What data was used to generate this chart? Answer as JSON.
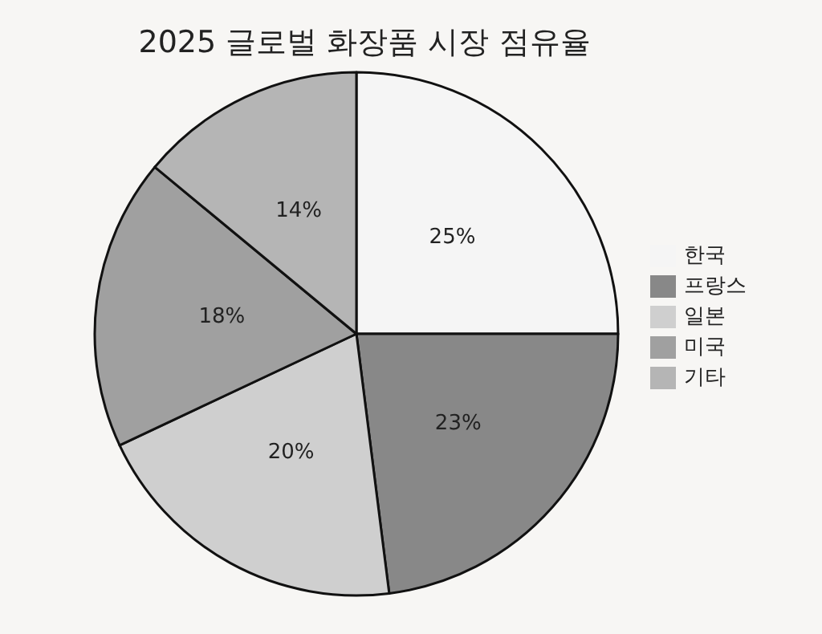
{
  "chart_data": {
    "type": "pie",
    "title": "2025 글로벌 화장품 시장 점유율",
    "categories": [
      "한국",
      "프랑스",
      "일본",
      "미국",
      "기타"
    ],
    "values": [
      25,
      23,
      20,
      18,
      14
    ],
    "colors": [
      "#f5f5f5",
      "#888888",
      "#cfcfcf",
      "#a0a0a0",
      "#b5b5b5"
    ],
    "value_labels": [
      "25%",
      "23%",
      "20%",
      "18%",
      "14%"
    ],
    "legend": "right"
  }
}
